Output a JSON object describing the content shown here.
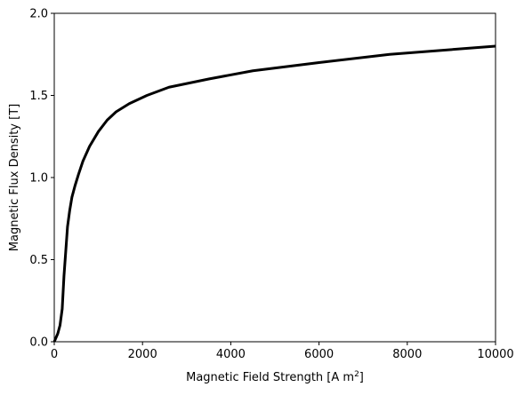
{
  "chart_data": {
    "type": "line",
    "xlabel": "Magnetic Field Strength [A m",
    "xlabel_superscript": "2",
    "xlabel_close": "]",
    "ylabel": "Magnetic Flux Density [T]",
    "xlim": [
      0,
      10000
    ],
    "ylim": [
      0,
      2.0
    ],
    "xticks": [
      0,
      2000,
      4000,
      6000,
      8000,
      10000
    ],
    "xtick_labels": [
      "0",
      "2000",
      "4000",
      "6000",
      "8000",
      "10000"
    ],
    "yticks": [
      0,
      0.5,
      1.0,
      1.5,
      2.0
    ],
    "ytick_labels": [
      "0.0",
      "0.5",
      "1.0",
      "1.5",
      "2.0"
    ],
    "grid": false,
    "line_color": "#000000",
    "series": [
      {
        "x": [
          0,
          80,
          130,
          180,
          220,
          260,
          300,
          350,
          400,
          470,
          550,
          650,
          800,
          1000,
          1200,
          1400,
          1700,
          2100,
          2600,
          3500,
          4500,
          6000,
          7600,
          10000
        ],
        "y": [
          0.0,
          0.05,
          0.1,
          0.2,
          0.4,
          0.55,
          0.7,
          0.8,
          0.88,
          0.95,
          1.02,
          1.1,
          1.19,
          1.28,
          1.35,
          1.4,
          1.45,
          1.5,
          1.55,
          1.6,
          1.65,
          1.7,
          1.75,
          1.8
        ]
      }
    ]
  }
}
